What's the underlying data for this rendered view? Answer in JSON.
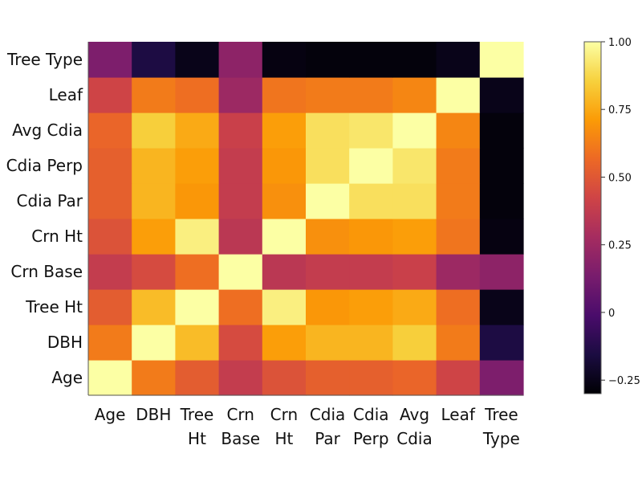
{
  "chart_data": {
    "type": "heatmap",
    "title": "",
    "x_labels": [
      [
        "Age"
      ],
      [
        "DBH"
      ],
      [
        "Tree",
        "Ht"
      ],
      [
        "Crn",
        "Base"
      ],
      [
        "Crn",
        "Ht"
      ],
      [
        "Cdia",
        "Par"
      ],
      [
        "Cdia",
        "Perp"
      ],
      [
        "Avg",
        "Cdia"
      ],
      [
        "Leaf"
      ],
      [
        "Tree",
        "Type"
      ]
    ],
    "y_labels": [
      "Age",
      "DBH",
      "Tree Ht",
      "Crn Base",
      "Crn Ht",
      "Cdia Par",
      "Cdia Perp",
      "Avg Cdia",
      "Leaf",
      "Tree Type"
    ],
    "values": [
      [
        1.0,
        0.62,
        0.52,
        0.38,
        0.48,
        0.53,
        0.53,
        0.55,
        0.42,
        0.15
      ],
      [
        0.62,
        1.0,
        0.8,
        0.45,
        0.72,
        0.78,
        0.78,
        0.85,
        0.62,
        -0.15
      ],
      [
        0.52,
        0.8,
        1.0,
        0.58,
        0.95,
        0.7,
        0.72,
        0.75,
        0.58,
        -0.25
      ],
      [
        0.38,
        0.45,
        0.58,
        1.0,
        0.35,
        0.38,
        0.38,
        0.4,
        0.25,
        0.2
      ],
      [
        0.48,
        0.72,
        0.95,
        0.35,
        1.0,
        0.68,
        0.7,
        0.72,
        0.6,
        -0.27
      ],
      [
        0.53,
        0.78,
        0.7,
        0.38,
        0.68,
        1.0,
        0.9,
        0.9,
        0.62,
        -0.28
      ],
      [
        0.53,
        0.78,
        0.72,
        0.38,
        0.7,
        0.9,
        1.0,
        0.92,
        0.62,
        -0.28
      ],
      [
        0.55,
        0.85,
        0.75,
        0.4,
        0.72,
        0.9,
        0.92,
        1.0,
        0.65,
        -0.28
      ],
      [
        0.42,
        0.62,
        0.58,
        0.25,
        0.6,
        0.62,
        0.62,
        0.65,
        1.0,
        -0.25
      ],
      [
        0.15,
        -0.15,
        -0.25,
        0.2,
        -0.27,
        -0.28,
        -0.28,
        -0.28,
        -0.25,
        1.0
      ]
    ],
    "colorbar": {
      "range": [
        -0.3,
        1.0
      ],
      "ticks": [
        {
          "value": 1.0,
          "label": "1.00"
        },
        {
          "value": 0.75,
          "label": "0.75"
        },
        {
          "value": 0.5,
          "label": "0.50"
        },
        {
          "value": 0.25,
          "label": "0.25"
        },
        {
          "value": 0,
          "label": "0"
        },
        {
          "value": -0.25,
          "label": "−0.25"
        }
      ]
    },
    "colormap": "inferno",
    "colormap_stops": [
      "#000004",
      "#1b0c41",
      "#4a0c6b",
      "#781c6d",
      "#a52c60",
      "#cf4446",
      "#ed6925",
      "#fb9b06",
      "#f7d13d",
      "#fcffa4"
    ],
    "axis_color": "#555555"
  }
}
